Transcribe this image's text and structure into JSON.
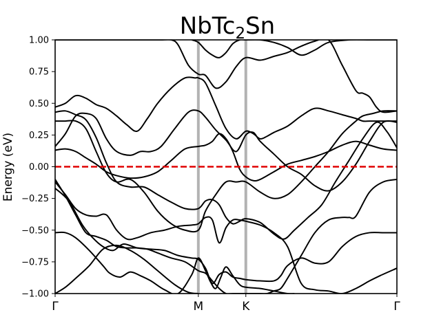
{
  "chart_data": {
    "type": "line",
    "title": {
      "main": "NbTc",
      "subscript": "2",
      "tail": "Sn"
    },
    "ylabel": "Energy (eV)",
    "xlabel": "",
    "ylim": [
      -1.0,
      1.0
    ],
    "yticks": [
      -1.0,
      -0.75,
      -0.5,
      -0.25,
      0.0,
      0.25,
      0.5,
      0.75,
      1.0
    ],
    "ytick_labels": [
      "−1.00",
      "−0.75",
      "−0.50",
      "−0.25",
      "0.00",
      "0.25",
      "0.50",
      "0.75",
      "1.00"
    ],
    "xrange": [
      0,
      1
    ],
    "high_symmetry": [
      {
        "label": "Γ",
        "x": 0.0
      },
      {
        "label": "M",
        "x": 0.419
      },
      {
        "label": "K",
        "x": 0.558
      },
      {
        "label": "Γ",
        "x": 1.0
      }
    ],
    "symmetry_line_color": "#b3b3b3",
    "fermi_level": {
      "value": 0.0,
      "color": "#e00000",
      "style": "dashed"
    },
    "band_color": "#000000",
    "grid": false,
    "legend": "none",
    "series": [
      {
        "x": [
          0,
          0.03,
          0.06,
          0.1,
          0.14,
          0.18,
          0.22,
          0.26,
          0.3,
          0.35,
          0.39,
          0.419
        ],
        "values": [
          -1.0,
          -0.95,
          -0.88,
          -0.78,
          -0.65,
          -0.62,
          -0.66,
          -0.73,
          -0.82,
          -0.93,
          -0.99,
          -1.0
        ]
      },
      {
        "x": [
          0,
          0.03,
          0.06,
          0.1,
          0.14,
          0.16,
          0.19,
          0.22,
          0.25,
          0.28,
          0.32,
          0.36,
          0.4,
          0.419,
          0.44,
          0.455,
          0.47,
          0.485,
          0.5,
          0.52,
          0.54,
          0.558,
          0.6,
          0.64,
          0.68,
          0.7
        ],
        "values": [
          -0.52,
          -0.52,
          -0.56,
          -0.66,
          -0.78,
          -0.84,
          -0.87,
          -0.83,
          -0.86,
          -0.9,
          -0.97,
          -1.0,
          -0.85,
          -0.72,
          -0.82,
          -0.91,
          -0.96,
          -0.87,
          -0.79,
          -0.86,
          -0.93,
          -0.95,
          -0.96,
          -0.98,
          -1.0,
          -1.0
        ]
      },
      {
        "x": [
          0,
          0.04,
          0.08,
          0.11,
          0.14,
          0.17,
          0.2,
          0.24,
          0.28,
          0.32,
          0.36,
          0.4,
          0.419,
          0.44,
          0.46,
          0.48,
          0.5,
          0.52,
          0.54,
          0.558,
          0.6,
          0.64,
          0.66,
          0.68,
          0.72,
          0.76,
          0.8,
          0.84,
          0.88,
          0.92,
          0.96,
          1.0
        ],
        "values": [
          -0.17,
          -0.27,
          -0.46,
          -0.56,
          -0.63,
          -0.66,
          -0.61,
          -0.64,
          -0.65,
          -0.66,
          -0.7,
          -0.72,
          -0.73,
          -0.8,
          -0.92,
          -0.85,
          -0.83,
          -0.87,
          -0.88,
          -0.89,
          -0.9,
          -0.9,
          -0.86,
          -0.78,
          -0.72,
          -0.76,
          -0.75,
          -0.63,
          -0.55,
          -0.52,
          -0.52,
          -0.52
        ]
      },
      {
        "x": [
          0,
          0.03,
          0.06,
          0.09,
          0.12,
          0.15,
          0.18,
          0.21,
          0.24,
          0.28,
          0.32,
          0.36,
          0.4,
          0.419,
          0.44,
          0.46,
          0.48,
          0.5,
          0.52,
          0.54,
          0.558,
          0.6,
          0.64,
          0.68,
          0.72,
          0.76,
          0.8,
          0.84,
          0.88,
          0.92,
          0.95,
          1.0
        ],
        "values": [
          -0.12,
          -0.22,
          -0.33,
          -0.38,
          -0.39,
          -0.38,
          -0.5,
          -0.57,
          -0.56,
          -0.52,
          -0.5,
          -0.47,
          -0.46,
          -0.45,
          -0.4,
          -0.42,
          -0.6,
          -0.48,
          -0.42,
          -0.42,
          -0.43,
          -0.46,
          -0.52,
          -0.63,
          -0.92,
          -0.97,
          -0.98,
          -1.0,
          -0.96,
          -0.9,
          -0.86,
          -0.8
        ]
      },
      {
        "x": [
          0,
          0.03,
          0.06,
          0.09,
          0.12,
          0.15,
          0.18,
          0.22,
          0.26,
          0.3,
          0.34,
          0.38,
          0.419,
          0.44,
          0.46,
          0.48,
          0.5,
          0.52,
          0.54,
          0.558,
          0.6,
          0.64,
          0.67,
          0.7,
          0.74,
          0.78,
          0.82,
          0.86,
          0.9,
          0.94,
          0.97,
          1.0
        ],
        "values": [
          0.43,
          0.44,
          0.41,
          0.37,
          0.23,
          0.03,
          -0.12,
          -0.16,
          -0.16,
          -0.22,
          -0.28,
          -0.33,
          -0.33,
          -0.27,
          -0.26,
          -0.3,
          -0.4,
          -0.45,
          -0.43,
          -0.41,
          -0.44,
          -0.53,
          -0.57,
          -0.5,
          -0.4,
          -0.3,
          -0.12,
          0.05,
          0.22,
          0.35,
          0.28,
          0.15
        ]
      },
      {
        "x": [
          0,
          0.03,
          0.06,
          0.09,
          0.12,
          0.15,
          0.18,
          0.21,
          0.24,
          0.27,
          0.3,
          0.34,
          0.38,
          0.419,
          0.44,
          0.46,
          0.48,
          0.5,
          0.52,
          0.54,
          0.558,
          0.58,
          0.6,
          0.62,
          0.64,
          0.66,
          0.68,
          0.72,
          0.76,
          0.8,
          0.84,
          0.86,
          0.88,
          0.92,
          0.96,
          1.0
        ],
        "values": [
          -0.1,
          -0.23,
          -0.38,
          -0.52,
          -0.55,
          -0.58,
          -0.63,
          -0.64,
          -0.64,
          -0.65,
          -0.68,
          -0.72,
          -0.75,
          -0.82,
          -0.84,
          -0.9,
          -0.96,
          -1.0,
          -1.0,
          -1.0,
          -1.0,
          -1.0,
          -1.0,
          -1.0,
          -0.98,
          -0.96,
          -0.88,
          -0.7,
          -0.52,
          -0.42,
          -0.4,
          -0.4,
          -0.39,
          -0.2,
          -0.12,
          -0.1
        ]
      },
      {
        "x": [
          0,
          0.03,
          0.06,
          0.09,
          0.12,
          0.15,
          0.18,
          0.22,
          0.26,
          0.3,
          0.34,
          0.38,
          0.419,
          0.44,
          0.47,
          0.5,
          0.53,
          0.558,
          0.6,
          0.64,
          0.68,
          0.72,
          0.76,
          0.8,
          0.84,
          0.88,
          0.9,
          0.93,
          0.96,
          1.0
        ],
        "values": [
          0.36,
          0.36,
          0.36,
          0.3,
          0.12,
          -0.05,
          -0.12,
          -0.1,
          -0.2,
          -0.35,
          -0.45,
          -0.5,
          -0.5,
          -0.35,
          -0.22,
          -0.12,
          -0.12,
          -0.12,
          -0.2,
          -0.25,
          -0.22,
          -0.12,
          0.0,
          0.12,
          0.26,
          0.36,
          0.4,
          0.42,
          0.44,
          0.44
        ]
      },
      {
        "x": [
          0,
          0.03,
          0.06,
          0.09,
          0.12,
          0.15,
          0.18,
          0.22,
          0.26,
          0.3,
          0.34,
          0.38,
          0.419,
          0.44,
          0.46,
          0.48,
          0.5,
          0.52,
          0.54,
          0.558,
          0.58,
          0.6,
          0.64,
          0.68,
          0.72,
          0.76,
          0.8,
          0.84,
          0.88,
          0.92,
          0.96,
          1.0
        ],
        "values": [
          0.13,
          0.14,
          0.12,
          0.07,
          0.02,
          -0.04,
          -0.07,
          -0.09,
          -0.08,
          -0.04,
          0.05,
          0.14,
          0.16,
          0.17,
          0.2,
          0.26,
          0.22,
          0.12,
          -0.02,
          -0.08,
          -0.11,
          -0.1,
          -0.04,
          0.02,
          0.05,
          0.08,
          0.12,
          0.17,
          0.2,
          0.17,
          0.14,
          0.13
        ]
      },
      {
        "x": [
          0,
          0.03,
          0.06,
          0.09,
          0.12,
          0.15,
          0.18,
          0.22,
          0.25,
          0.28,
          0.31,
          0.35,
          0.39,
          0.419,
          0.44,
          0.47,
          0.5,
          0.53,
          0.558,
          0.58,
          0.6,
          0.64,
          0.68,
          0.72,
          0.76,
          0.8,
          0.84,
          0.88,
          0.92,
          0.96,
          1.0
        ],
        "values": [
          0.16,
          0.26,
          0.4,
          0.42,
          0.38,
          0.22,
          0.12,
          0.09,
          0.12,
          0.12,
          0.16,
          0.3,
          0.43,
          0.44,
          0.39,
          0.29,
          0.21,
          0.12,
          0.25,
          0.27,
          0.2,
          0.1,
          0.0,
          -0.06,
          -0.15,
          -0.19,
          -0.12,
          0.02,
          0.2,
          0.35,
          0.35
        ]
      },
      {
        "x": [
          0,
          0.03,
          0.06,
          0.09,
          0.12,
          0.15,
          0.18,
          0.21,
          0.24,
          0.27,
          0.3,
          0.34,
          0.38,
          0.41,
          0.419,
          0.44,
          0.47,
          0.5,
          0.53,
          0.558,
          0.58,
          0.6,
          0.62,
          0.64,
          0.68,
          0.72,
          0.76,
          0.8,
          0.84,
          0.88,
          0.9,
          0.92,
          0.95,
          0.98,
          1.0
        ],
        "values": [
          0.47,
          0.5,
          0.56,
          0.54,
          0.49,
          0.46,
          0.4,
          0.33,
          0.28,
          0.38,
          0.5,
          0.62,
          0.7,
          0.7,
          0.7,
          0.66,
          0.48,
          0.3,
          0.22,
          0.28,
          0.26,
          0.22,
          0.24,
          0.27,
          0.32,
          0.4,
          0.46,
          0.44,
          0.41,
          0.38,
          0.36,
          0.36,
          0.36,
          0.36,
          0.36
        ]
      },
      {
        "x": [
          0,
          0.04,
          0.08,
          0.12,
          0.16,
          0.2,
          0.24,
          0.28,
          0.31,
          0.34,
          0.36,
          0.39,
          0.419,
          0.44,
          0.47,
          0.5,
          0.53,
          0.558,
          0.6,
          0.64,
          0.68,
          0.72,
          0.76,
          0.8,
          0.84,
          0.88,
          0.9,
          0.92,
          0.94,
          0.96,
          1.0
        ],
        "values": [
          1.0,
          1.0,
          1.0,
          1.0,
          1.0,
          1.0,
          1.0,
          1.0,
          1.0,
          1.0,
          0.96,
          0.8,
          0.73,
          0.72,
          0.62,
          0.67,
          0.79,
          0.86,
          0.84,
          0.87,
          0.9,
          0.95,
          0.99,
          1.0,
          0.8,
          0.6,
          0.58,
          0.55,
          0.47,
          0.43,
          0.44
        ]
      },
      {
        "x": [
          0.4,
          0.419,
          0.44,
          0.46,
          0.48,
          0.5,
          0.52,
          0.54,
          0.558,
          0.6,
          0.64,
          0.68,
          0.72,
          0.76,
          0.8,
          0.86,
          0.92,
          0.96,
          1.0
        ],
        "values": [
          1.0,
          0.98,
          0.92,
          0.88,
          0.86,
          0.9,
          0.97,
          1.0,
          1.0,
          1.0,
          0.98,
          0.94,
          0.88,
          0.92,
          0.98,
          1.0,
          1.0,
          1.0,
          1.0
        ]
      }
    ]
  }
}
